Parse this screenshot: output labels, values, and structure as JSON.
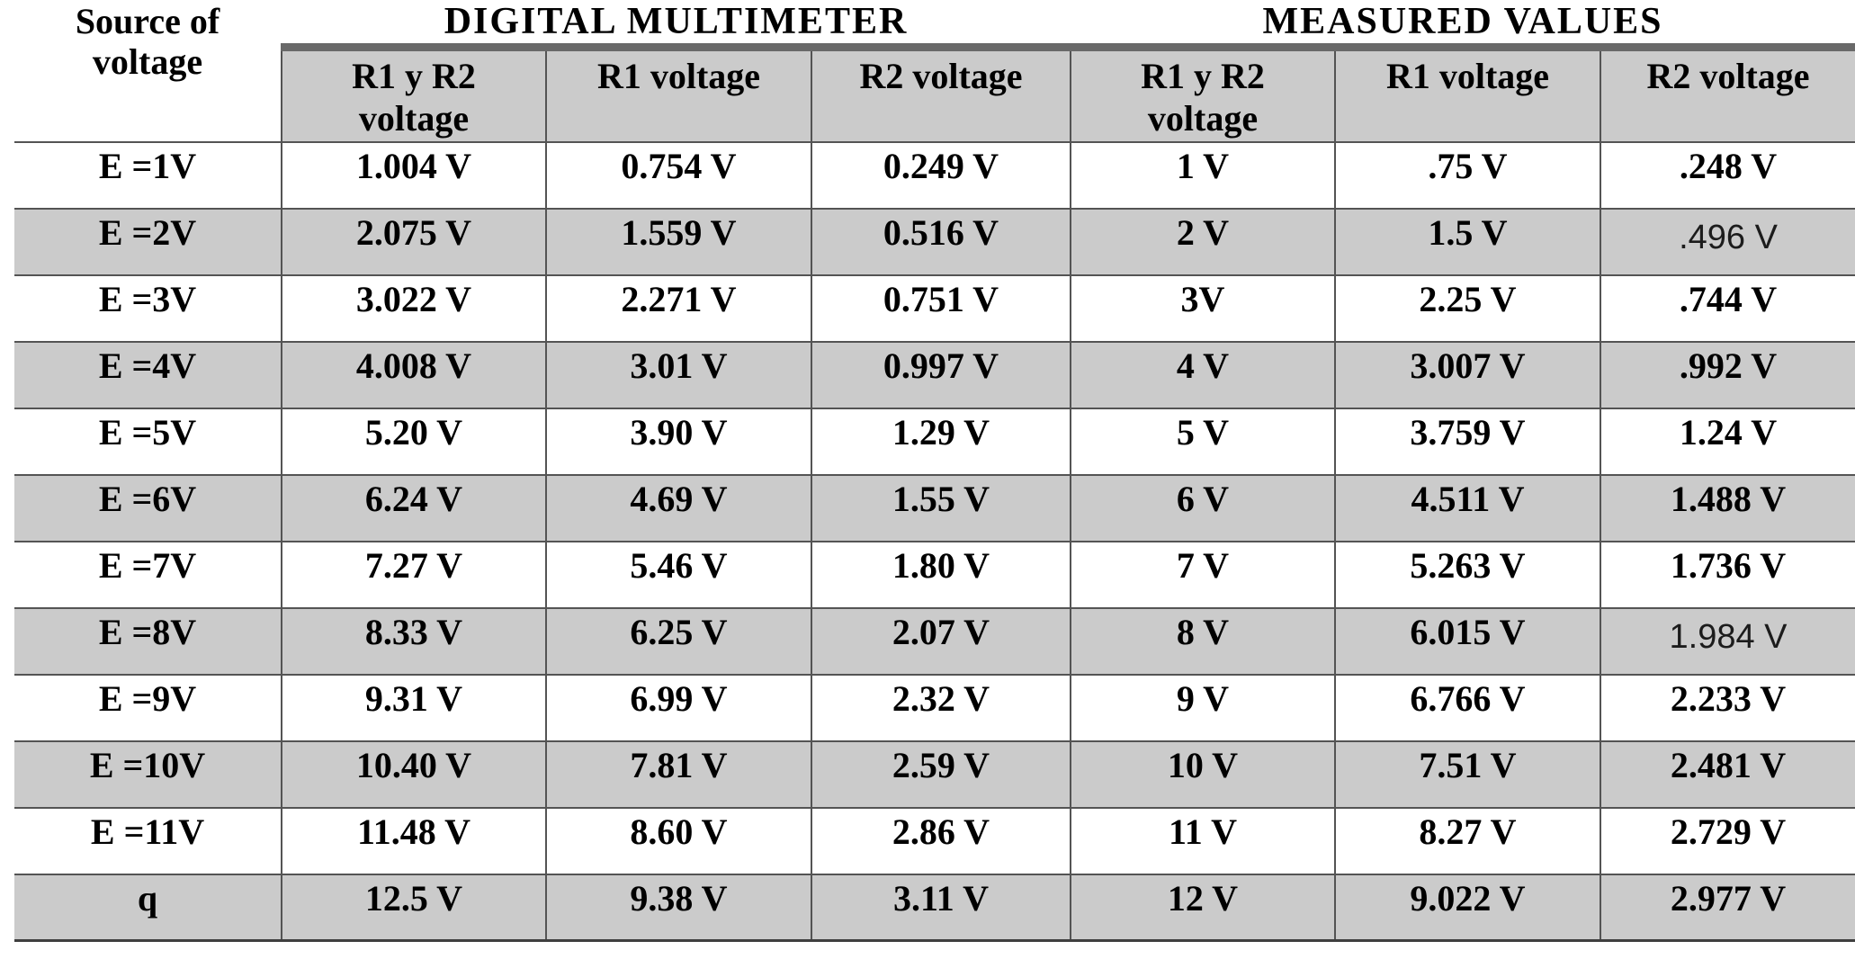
{
  "colors": {
    "row_shade": "#cbcbcb",
    "header_shade": "#cbcbcb",
    "accent_bar": "#696969",
    "grid_line": "#545454"
  },
  "table": {
    "corner_header": "Source of voltage",
    "groups": [
      {
        "label": "DIGITAL MULTIMETER"
      },
      {
        "label": "MEASURED VALUES"
      }
    ],
    "sub_headers": [
      "R1 y R2 voltage",
      "R1 voltage",
      "R2 voltage",
      "R1 y R2 voltage",
      "R1 voltage",
      "R2 voltage"
    ],
    "rows": [
      {
        "label": "E =1V",
        "values": [
          "1.004 V",
          "0.754 V",
          "0.249 V",
          "1 V",
          ".75 V",
          ".248 V"
        ],
        "alt_font_cols": []
      },
      {
        "label": "E =2V",
        "values": [
          "2.075 V",
          "1.559 V",
          "0.516 V",
          "2 V",
          "1.5 V",
          ".496 V"
        ],
        "alt_font_cols": [
          5
        ]
      },
      {
        "label": "E =3V",
        "values": [
          "3.022 V",
          "2.271 V",
          "0.751 V",
          "3V",
          "2.25 V",
          ".744 V"
        ],
        "alt_font_cols": []
      },
      {
        "label": "E =4V",
        "values": [
          "4.008 V",
          "3.01 V",
          "0.997 V",
          "4 V",
          "3.007 V",
          ".992 V"
        ],
        "alt_font_cols": []
      },
      {
        "label": "E =5V",
        "values": [
          "5.20 V",
          "3.90 V",
          "1.29 V",
          "5 V",
          "3.759 V",
          "1.24 V"
        ],
        "alt_font_cols": []
      },
      {
        "label": "E =6V",
        "values": [
          "6.24 V",
          "4.69 V",
          "1.55 V",
          "6 V",
          "4.511 V",
          "1.488 V"
        ],
        "alt_font_cols": []
      },
      {
        "label": "E =7V",
        "values": [
          "7.27 V",
          "5.46 V",
          "1.80 V",
          "7 V",
          "5.263 V",
          "1.736 V"
        ],
        "alt_font_cols": []
      },
      {
        "label": "E =8V",
        "values": [
          "8.33 V",
          "6.25 V",
          "2.07 V",
          "8 V",
          "6.015 V",
          "1.984 V"
        ],
        "alt_font_cols": [
          5
        ]
      },
      {
        "label": "E =9V",
        "values": [
          "9.31 V",
          "6.99 V",
          "2.32 V",
          "9 V",
          "6.766 V",
          "2.233 V"
        ],
        "alt_font_cols": []
      },
      {
        "label": "E =10V",
        "values": [
          "10.40 V",
          "7.81 V",
          "2.59 V",
          "10 V",
          "7.51 V",
          "2.481 V"
        ],
        "alt_font_cols": []
      },
      {
        "label": "E =11V",
        "values": [
          "11.48 V",
          "8.60 V",
          "2.86 V",
          "11 V",
          "8.27 V",
          "2.729 V"
        ],
        "alt_font_cols": []
      },
      {
        "label": "q",
        "values": [
          "12.5 V",
          "9.38 V",
          "3.11 V",
          "12 V",
          "9.022 V",
          "2.977 V"
        ],
        "alt_font_cols": []
      }
    ]
  }
}
